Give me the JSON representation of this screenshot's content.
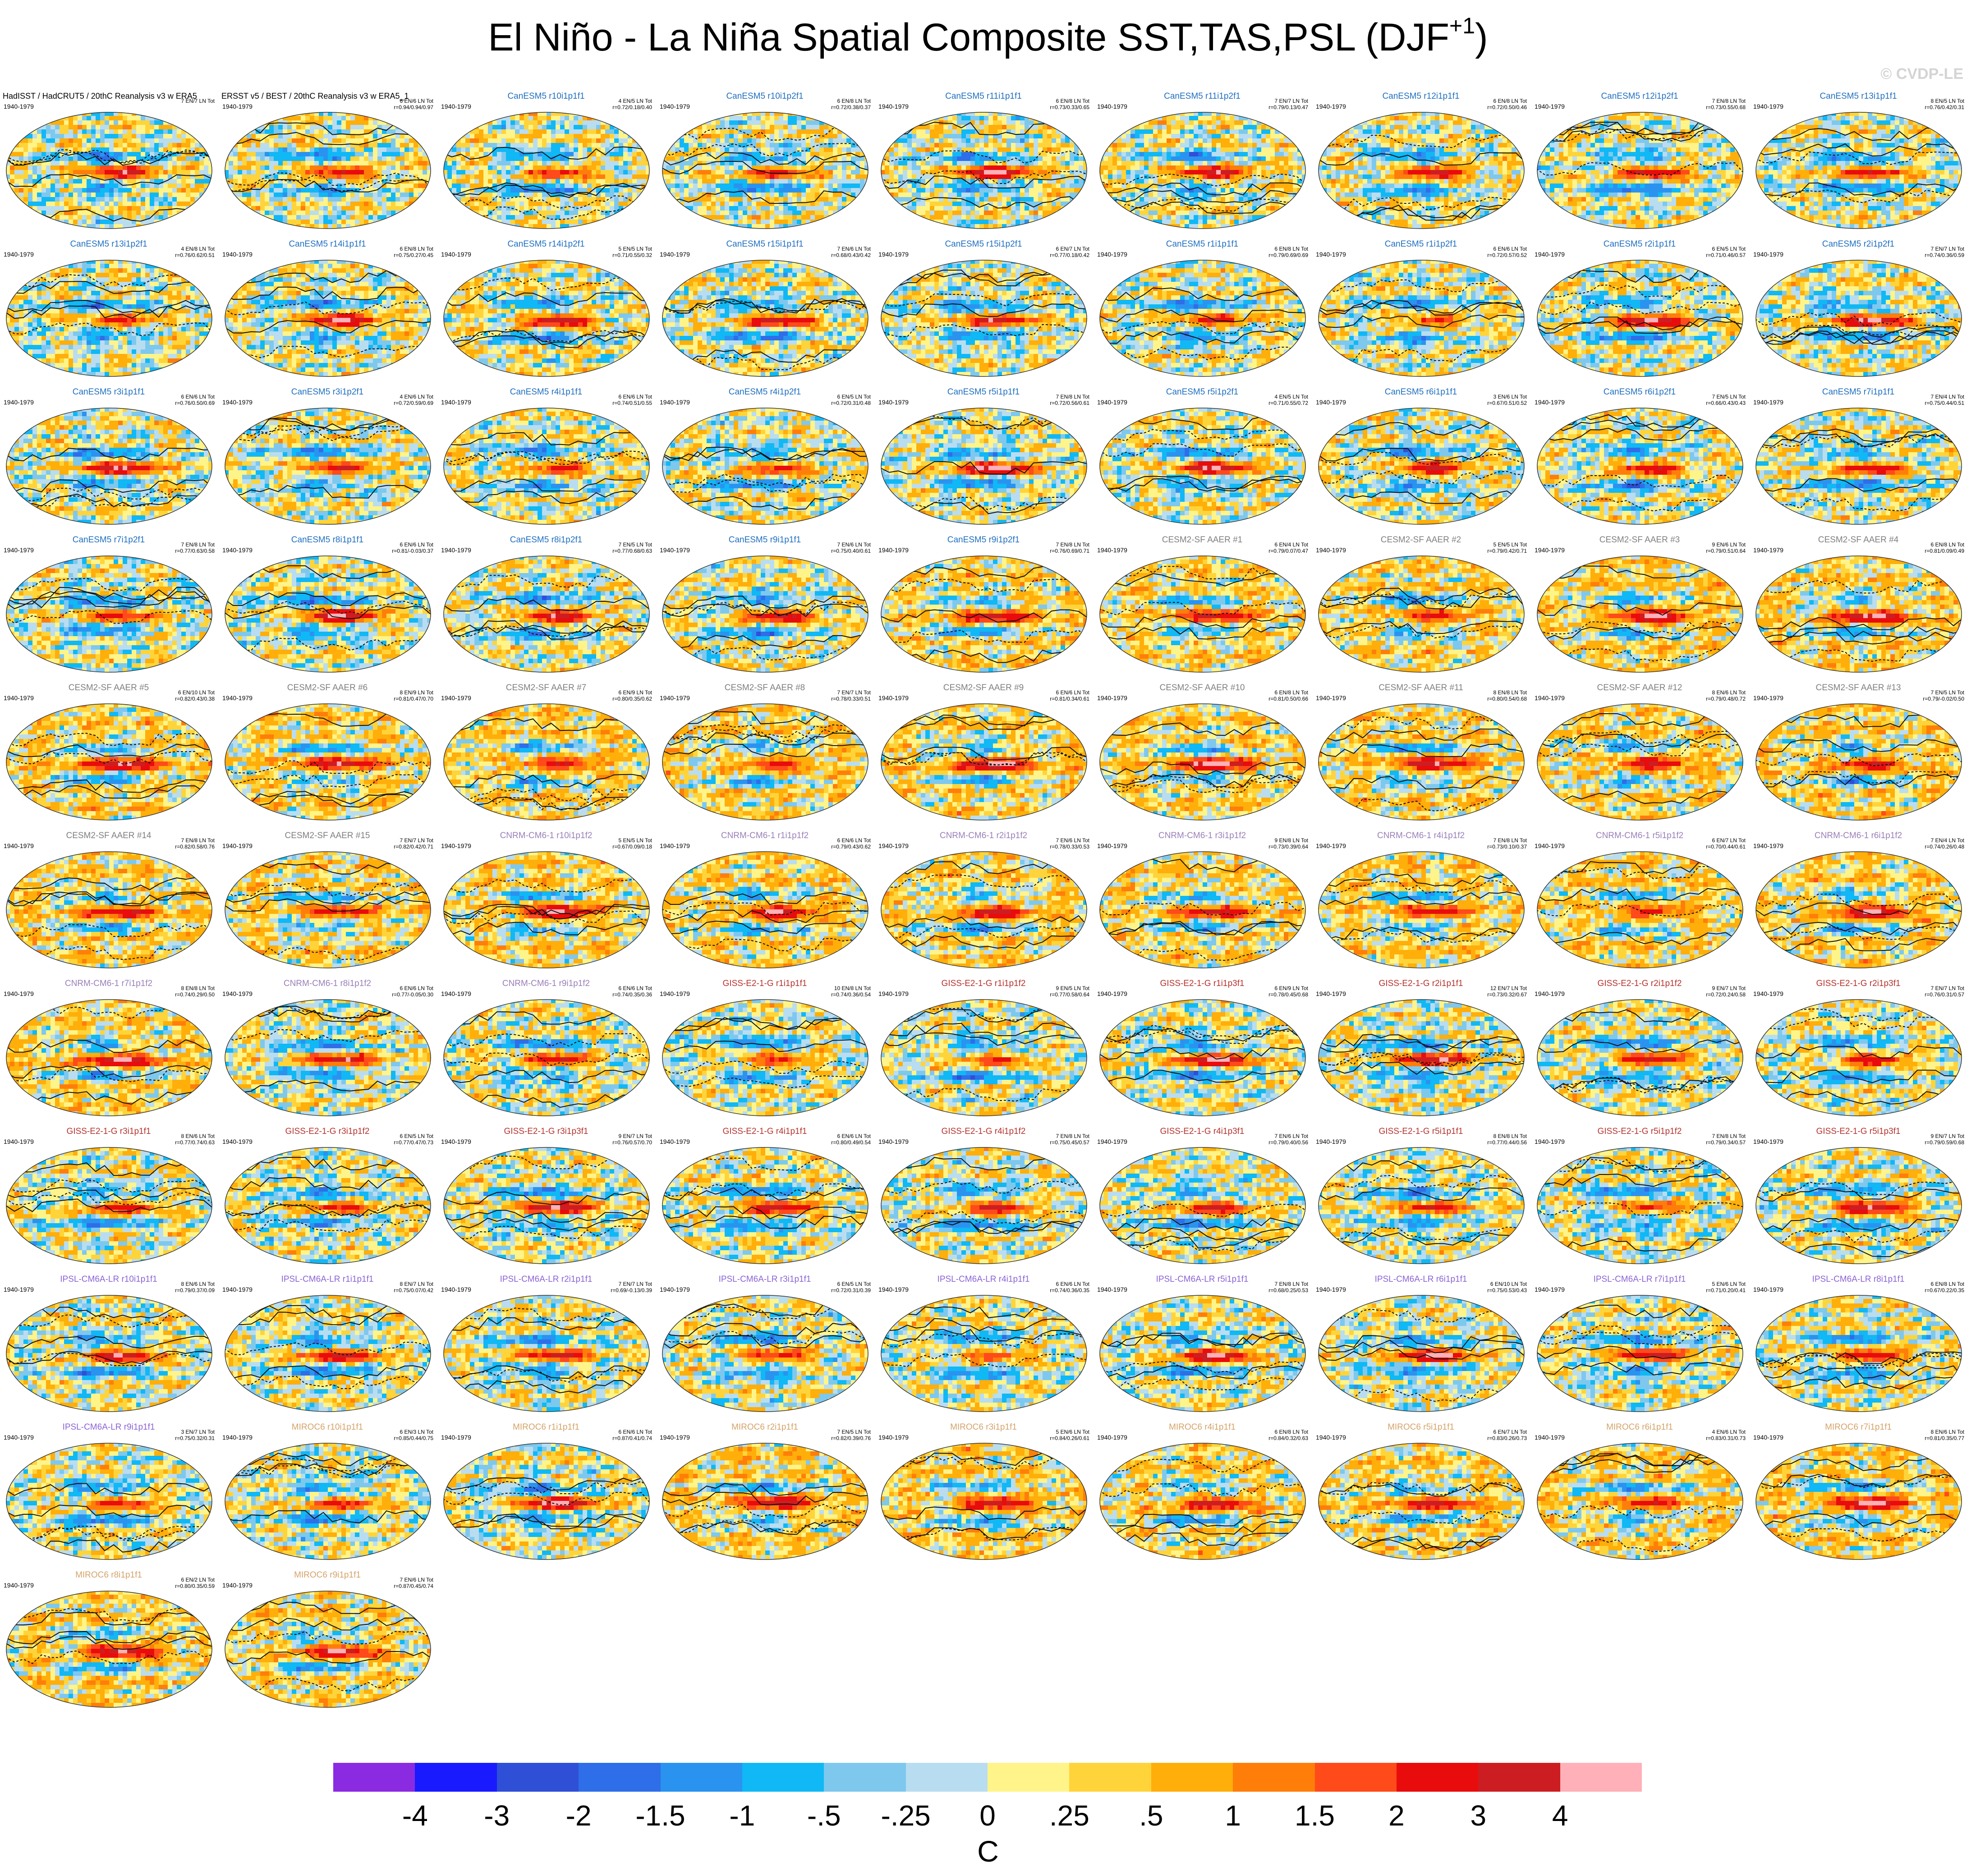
{
  "page": {
    "title_main": "El Niño - La Niña Spatial Composite SST,TAS,PSL (DJF",
    "title_sup": "+1",
    "title_close": ")",
    "watermark": "© CVDP-LE",
    "units": "C"
  },
  "colors": {
    "CanESM5": "#1f6fc0",
    "CESM2": "#7f7f7f",
    "CNRM": "#9a7fb8",
    "GISS": "#b5332e",
    "IPSL": "#8b63d6",
    "MIROC6": "#d4a36a",
    "obs": "#000000"
  },
  "colorbar": {
    "colors": [
      "#8a2be2",
      "#1a1aff",
      "#2f4fd6",
      "#2e6ee8",
      "#2a93f0",
      "#10b8f5",
      "#7ec8ee",
      "#b9ddf0",
      "#fff48a",
      "#ffd43a",
      "#ffae0a",
      "#ff7e0a",
      "#ff4a1a",
      "#e80c0c",
      "#cc1e22",
      "#ffb0b8"
    ],
    "labels": [
      "-4",
      "-3",
      "-2",
      "-1.5",
      "-1",
      "-.5",
      "-.25",
      "0",
      ".25",
      ".5",
      "1",
      "1.5",
      "2",
      "3",
      "4"
    ]
  },
  "chart_data": {
    "type": "heatmap",
    "title": "El Niño - La Niña Spatial Composite SST,TAS,PSL (DJF+1)",
    "colorbar_label": "C",
    "colorbar_levels": [
      -4,
      -3,
      -2,
      -1.5,
      -1,
      -0.5,
      -0.25,
      0,
      0.25,
      0.5,
      1,
      1.5,
      2,
      3,
      4
    ],
    "panels": [
      {
        "name": "HadISST / HadCRUT5 / 20thC Reanalysis v3 w ERA5",
        "period": "1940-1979",
        "stats_1": "7 EN/7 LN Tot",
        "stats_2": "",
        "group": "obs"
      },
      {
        "name": "ERSST v5 / BEST / 20thC Reanalysis v3 w ERA5_1",
        "period": "1940-1979",
        "stats_1": "6 EN/6 LN Tot",
        "stats_2": "r=0.94/0.94/0.97",
        "group": "obs"
      },
      {
        "name": "CanESM5 r10i1p1f1",
        "period": "1940-1979",
        "stats_1": "4 EN/5 LN Tot",
        "stats_2": "r=0.72/0.18/0.40",
        "group": "CanESM5"
      },
      {
        "name": "CanESM5 r10i1p2f1",
        "period": "1940-1979",
        "stats_1": "6 EN/8 LN Tot",
        "stats_2": "r=0.72/0.38/0.37",
        "group": "CanESM5"
      },
      {
        "name": "CanESM5 r11i1p1f1",
        "period": "1940-1979",
        "stats_1": "6 EN/8 LN Tot",
        "stats_2": "r=0.73/0.33/0.65",
        "group": "CanESM5"
      },
      {
        "name": "CanESM5 r11i1p2f1",
        "period": "1940-1979",
        "stats_1": "7 EN/7 LN Tot",
        "stats_2": "r=0.79/0.13/0.47",
        "group": "CanESM5"
      },
      {
        "name": "CanESM5 r12i1p1f1",
        "period": "1940-1979",
        "stats_1": "6 EN/8 LN Tot",
        "stats_2": "r=0.72/0.50/0.46",
        "group": "CanESM5"
      },
      {
        "name": "CanESM5 r12i1p2f1",
        "period": "1940-1979",
        "stats_1": "7 EN/8 LN Tot",
        "stats_2": "r=0.73/0.55/0.68",
        "group": "CanESM5"
      },
      {
        "name": "CanESM5 r13i1p1f1",
        "period": "1940-1979",
        "stats_1": "8 EN/5 LN Tot",
        "stats_2": "r=0.76/0.42/0.31",
        "group": "CanESM5"
      },
      {
        "name": "CanESM5 r13i1p2f1",
        "period": "1940-1979",
        "stats_1": "4 EN/8 LN Tot",
        "stats_2": "r=0.76/0.62/0.51",
        "group": "CanESM5"
      },
      {
        "name": "CanESM5 r14i1p1f1",
        "period": "1940-1979",
        "stats_1": "6 EN/8 LN Tot",
        "stats_2": "r=0.75/0.27/0.45",
        "group": "CanESM5"
      },
      {
        "name": "CanESM5 r14i1p2f1",
        "period": "1940-1979",
        "stats_1": "5 EN/5 LN Tot",
        "stats_2": "r=0.71/0.55/0.32",
        "group": "CanESM5"
      },
      {
        "name": "CanESM5 r15i1p1f1",
        "period": "1940-1979",
        "stats_1": "7 EN/6 LN Tot",
        "stats_2": "r=0.68/0.43/0.42",
        "group": "CanESM5"
      },
      {
        "name": "CanESM5 r15i1p2f1",
        "period": "1940-1979",
        "stats_1": "6 EN/7 LN Tot",
        "stats_2": "r=0.77/0.18/0.42",
        "group": "CanESM5"
      },
      {
        "name": "CanESM5 r1i1p1f1",
        "period": "1940-1979",
        "stats_1": "6 EN/8 LN Tot",
        "stats_2": "r=0.79/0.69/0.69",
        "group": "CanESM5"
      },
      {
        "name": "CanESM5 r1i1p2f1",
        "period": "1940-1979",
        "stats_1": "6 EN/6 LN Tot",
        "stats_2": "r=0.72/0.57/0.52",
        "group": "CanESM5"
      },
      {
        "name": "CanESM5 r2i1p1f1",
        "period": "1940-1979",
        "stats_1": "6 EN/5 LN Tot",
        "stats_2": "r=0.71/0.46/0.57",
        "group": "CanESM5"
      },
      {
        "name": "CanESM5 r2i1p2f1",
        "period": "1940-1979",
        "stats_1": "7 EN/7 LN Tot",
        "stats_2": "r=0.74/0.36/0.59",
        "group": "CanESM5"
      },
      {
        "name": "CanESM5 r3i1p1f1",
        "period": "1940-1979",
        "stats_1": "6 EN/6 LN Tot",
        "stats_2": "r=0.76/0.50/0.69",
        "group": "CanESM5"
      },
      {
        "name": "CanESM5 r3i1p2f1",
        "period": "1940-1979",
        "stats_1": "4 EN/6 LN Tot",
        "stats_2": "r=0.72/0.59/0.69",
        "group": "CanESM5"
      },
      {
        "name": "CanESM5 r4i1p1f1",
        "period": "1940-1979",
        "stats_1": "6 EN/6 LN Tot",
        "stats_2": "r=0.74/0.51/0.55",
        "group": "CanESM5"
      },
      {
        "name": "CanESM5 r4i1p2f1",
        "period": "1940-1979",
        "stats_1": "6 EN/5 LN Tot",
        "stats_2": "r=0.72/0.31/0.48",
        "group": "CanESM5"
      },
      {
        "name": "CanESM5 r5i1p1f1",
        "period": "1940-1979",
        "stats_1": "7 EN/8 LN Tot",
        "stats_2": "r=0.72/0.56/0.61",
        "group": "CanESM5"
      },
      {
        "name": "CanESM5 r5i1p2f1",
        "period": "1940-1979",
        "stats_1": "4 EN/5 LN Tot",
        "stats_2": "r=0.71/0.55/0.72",
        "group": "CanESM5"
      },
      {
        "name": "CanESM5 r6i1p1f1",
        "period": "1940-1979",
        "stats_1": "3 EN/6 LN Tot",
        "stats_2": "r=0.67/0.51/0.52",
        "group": "CanESM5"
      },
      {
        "name": "CanESM5 r6i1p2f1",
        "period": "1940-1979",
        "stats_1": "7 EN/5 LN Tot",
        "stats_2": "r=0.66/0.43/0.43",
        "group": "CanESM5"
      },
      {
        "name": "CanESM5 r7i1p1f1",
        "period": "1940-1979",
        "stats_1": "7 EN/4 LN Tot",
        "stats_2": "r=0.75/0.44/0.51",
        "group": "CanESM5"
      },
      {
        "name": "CanESM5 r7i1p2f1",
        "period": "1940-1979",
        "stats_1": "7 EN/8 LN Tot",
        "stats_2": "r=0.77/0.63/0.58",
        "group": "CanESM5"
      },
      {
        "name": "CanESM5 r8i1p1f1",
        "period": "1940-1979",
        "stats_1": "6 EN/6 LN Tot",
        "stats_2": "r=0.81/-0.03/0.37",
        "group": "CanESM5"
      },
      {
        "name": "CanESM5 r8i1p2f1",
        "period": "1940-1979",
        "stats_1": "7 EN/5 LN Tot",
        "stats_2": "r=0.77/0.68/0.63",
        "group": "CanESM5"
      },
      {
        "name": "CanESM5 r9i1p1f1",
        "period": "1940-1979",
        "stats_1": "7 EN/6 LN Tot",
        "stats_2": "r=0.75/0.40/0.61",
        "group": "CanESM5"
      },
      {
        "name": "CanESM5 r9i1p2f1",
        "period": "1940-1979",
        "stats_1": "7 EN/8 LN Tot",
        "stats_2": "r=0.76/0.69/0.71",
        "group": "CanESM5"
      },
      {
        "name": "CESM2-SF AAER #1",
        "period": "1940-1979",
        "stats_1": "6 EN/4 LN Tot",
        "stats_2": "r=0.79/0.07/0.47",
        "group": "CESM2"
      },
      {
        "name": "CESM2-SF AAER #2",
        "period": "1940-1979",
        "stats_1": "5 EN/5 LN Tot",
        "stats_2": "r=0.79/0.42/0.71",
        "group": "CESM2"
      },
      {
        "name": "CESM2-SF AAER #3",
        "period": "1940-1979",
        "stats_1": "9 EN/6 LN Tot",
        "stats_2": "r=0.79/0.51/0.64",
        "group": "CESM2"
      },
      {
        "name": "CESM2-SF AAER #4",
        "period": "1940-1979",
        "stats_1": "6 EN/8 LN Tot",
        "stats_2": "r=0.81/0.09/0.49",
        "group": "CESM2"
      },
      {
        "name": "CESM2-SF AAER #5",
        "period": "1940-1979",
        "stats_1": "6 EN/10 LN Tot",
        "stats_2": "r=0.82/0.43/0.38",
        "group": "CESM2"
      },
      {
        "name": "CESM2-SF AAER #6",
        "period": "1940-1979",
        "stats_1": "8 EN/9 LN Tot",
        "stats_2": "r=0.81/0.47/0.70",
        "group": "CESM2"
      },
      {
        "name": "CESM2-SF AAER #7",
        "period": "1940-1979",
        "stats_1": "6 EN/9 LN Tot",
        "stats_2": "r=0.80/0.35/0.62",
        "group": "CESM2"
      },
      {
        "name": "CESM2-SF AAER #8",
        "period": "1940-1979",
        "stats_1": "7 EN/7 LN Tot",
        "stats_2": "r=0.78/0.33/0.51",
        "group": "CESM2"
      },
      {
        "name": "CESM2-SF AAER #9",
        "period": "1940-1979",
        "stats_1": "6 EN/6 LN Tot",
        "stats_2": "r=0.81/0.34/0.61",
        "group": "CESM2"
      },
      {
        "name": "CESM2-SF AAER #10",
        "period": "1940-1979",
        "stats_1": "6 EN/8 LN Tot",
        "stats_2": "r=0.81/0.50/0.66",
        "group": "CESM2"
      },
      {
        "name": "CESM2-SF AAER #11",
        "period": "1940-1979",
        "stats_1": "8 EN/8 LN Tot",
        "stats_2": "r=0.80/0.54/0.68",
        "group": "CESM2"
      },
      {
        "name": "CESM2-SF AAER #12",
        "period": "1940-1979",
        "stats_1": "8 EN/6 LN Tot",
        "stats_2": "r=0.79/0.48/0.72",
        "group": "CESM2"
      },
      {
        "name": "CESM2-SF AAER #13",
        "period": "1940-1979",
        "stats_1": "7 EN/5 LN Tot",
        "stats_2": "r=0.79/-0.02/0.50",
        "group": "CESM2"
      },
      {
        "name": "CESM2-SF AAER #14",
        "period": "1940-1979",
        "stats_1": "7 EN/8 LN Tot",
        "stats_2": "r=0.82/0.58/0.76",
        "group": "CESM2"
      },
      {
        "name": "CESM2-SF AAER #15",
        "period": "1940-1979",
        "stats_1": "7 EN/7 LN Tot",
        "stats_2": "r=0.82/0.42/0.71",
        "group": "CESM2"
      },
      {
        "name": "CNRM-CM6-1 r10i1p1f2",
        "period": "1940-1979",
        "stats_1": "5 EN/5 LN Tot",
        "stats_2": "r=0.67/0.09/0.18",
        "group": "CNRM"
      },
      {
        "name": "CNRM-CM6-1 r1i1p1f2",
        "period": "1940-1979",
        "stats_1": "6 EN/6 LN Tot",
        "stats_2": "r=0.79/0.43/0.62",
        "group": "CNRM"
      },
      {
        "name": "CNRM-CM6-1 r2i1p1f2",
        "period": "1940-1979",
        "stats_1": "7 EN/6 LN Tot",
        "stats_2": "r=0.78/0.33/0.53",
        "group": "CNRM"
      },
      {
        "name": "CNRM-CM6-1 r3i1p1f2",
        "period": "1940-1979",
        "stats_1": "9 EN/8 LN Tot",
        "stats_2": "r=0.73/0.39/0.64",
        "group": "CNRM"
      },
      {
        "name": "CNRM-CM6-1 r4i1p1f2",
        "period": "1940-1979",
        "stats_1": "7 EN/8 LN Tot",
        "stats_2": "r=0.73/0.10/0.37",
        "group": "CNRM"
      },
      {
        "name": "CNRM-CM6-1 r5i1p1f2",
        "period": "1940-1979",
        "stats_1": "6 EN/7 LN Tot",
        "stats_2": "r=0.70/0.44/0.61",
        "group": "CNRM"
      },
      {
        "name": "CNRM-CM6-1 r6i1p1f2",
        "period": "1940-1979",
        "stats_1": "7 EN/4 LN Tot",
        "stats_2": "r=0.74/0.26/0.48",
        "group": "CNRM"
      },
      {
        "name": "CNRM-CM6-1 r7i1p1f2",
        "period": "1940-1979",
        "stats_1": "8 EN/8 LN Tot",
        "stats_2": "r=0.74/0.29/0.50",
        "group": "CNRM"
      },
      {
        "name": "CNRM-CM6-1 r8i1p1f2",
        "period": "1940-1979",
        "stats_1": "6 EN/6 LN Tot",
        "stats_2": "r=0.77/-0.05/0.30",
        "group": "CNRM"
      },
      {
        "name": "CNRM-CM6-1 r9i1p1f2",
        "period": "1940-1979",
        "stats_1": "6 EN/6 LN Tot",
        "stats_2": "r=0.74/0.35/0.36",
        "group": "CNRM"
      },
      {
        "name": "GISS-E2-1-G r1i1p1f1",
        "period": "1940-1979",
        "stats_1": "10 EN/8 LN Tot",
        "stats_2": "r=0.74/0.36/0.54",
        "group": "GISS"
      },
      {
        "name": "GISS-E2-1-G r1i1p1f2",
        "period": "1940-1979",
        "stats_1": "9 EN/5 LN Tot",
        "stats_2": "r=0.77/0.58/0.64",
        "group": "GISS"
      },
      {
        "name": "GISS-E2-1-G r1i1p3f1",
        "period": "1940-1979",
        "stats_1": "6 EN/9 LN Tot",
        "stats_2": "r=0.78/0.45/0.68",
        "group": "GISS"
      },
      {
        "name": "GISS-E2-1-G r2i1p1f1",
        "period": "1940-1979",
        "stats_1": "12 EN/7 LN Tot",
        "stats_2": "r=0.73/0.32/0.67",
        "group": "GISS"
      },
      {
        "name": "GISS-E2-1-G r2i1p1f2",
        "period": "1940-1979",
        "stats_1": "9 EN/7 LN Tot",
        "stats_2": "r=0.72/0.24/0.58",
        "group": "GISS"
      },
      {
        "name": "GISS-E2-1-G r2i1p3f1",
        "period": "1940-1979",
        "stats_1": "7 EN/7 LN Tot",
        "stats_2": "r=0.76/0.31/0.57",
        "group": "GISS"
      },
      {
        "name": "GISS-E2-1-G r3i1p1f1",
        "period": "1940-1979",
        "stats_1": "8 EN/6 LN Tot",
        "stats_2": "r=0.77/0.74/0.63",
        "group": "GISS"
      },
      {
        "name": "GISS-E2-1-G r3i1p1f2",
        "period": "1940-1979",
        "stats_1": "6 EN/5 LN Tot",
        "stats_2": "r=0.77/0.47/0.73",
        "group": "GISS"
      },
      {
        "name": "GISS-E2-1-G r3i1p3f1",
        "period": "1940-1979",
        "stats_1": "9 EN/7 LN Tot",
        "stats_2": "r=0.76/0.57/0.70",
        "group": "GISS"
      },
      {
        "name": "GISS-E2-1-G r4i1p1f1",
        "period": "1940-1979",
        "stats_1": "6 EN/6 LN Tot",
        "stats_2": "r=0.80/0.49/0.54",
        "group": "GISS"
      },
      {
        "name": "GISS-E2-1-G r4i1p1f2",
        "period": "1940-1979",
        "stats_1": "7 EN/8 LN Tot",
        "stats_2": "r=0.75/0.45/0.57",
        "group": "GISS"
      },
      {
        "name": "GISS-E2-1-G r4i1p3f1",
        "period": "1940-1979",
        "stats_1": "7 EN/6 LN Tot",
        "stats_2": "r=0.79/0.40/0.56",
        "group": "GISS"
      },
      {
        "name": "GISS-E2-1-G r5i1p1f1",
        "period": "1940-1979",
        "stats_1": "8 EN/8 LN Tot",
        "stats_2": "r=0.77/0.44/0.56",
        "group": "GISS"
      },
      {
        "name": "GISS-E2-1-G r5i1p1f2",
        "period": "1940-1979",
        "stats_1": "7 EN/8 LN Tot",
        "stats_2": "r=0.79/0.34/0.57",
        "group": "GISS"
      },
      {
        "name": "GISS-E2-1-G r5i1p3f1",
        "period": "1940-1979",
        "stats_1": "9 EN/7 LN Tot",
        "stats_2": "r=0.79/0.59/0.68",
        "group": "GISS"
      },
      {
        "name": "IPSL-CM6A-LR r10i1p1f1",
        "period": "1940-1979",
        "stats_1": "8 EN/6 LN Tot",
        "stats_2": "r=0.79/0.37/0.09",
        "group": "IPSL"
      },
      {
        "name": "IPSL-CM6A-LR r1i1p1f1",
        "period": "1940-1979",
        "stats_1": "8 EN/7 LN Tot",
        "stats_2": "r=0.75/0.07/0.42",
        "group": "IPSL"
      },
      {
        "name": "IPSL-CM6A-LR r2i1p1f1",
        "period": "1940-1979",
        "stats_1": "7 EN/7 LN Tot",
        "stats_2": "r=0.69/-0.13/0.39",
        "group": "IPSL"
      },
      {
        "name": "IPSL-CM6A-LR r3i1p1f1",
        "period": "1940-1979",
        "stats_1": "6 EN/5 LN Tot",
        "stats_2": "r=0.72/0.31/0.39",
        "group": "IPSL"
      },
      {
        "name": "IPSL-CM6A-LR r4i1p1f1",
        "period": "1940-1979",
        "stats_1": "6 EN/6 LN Tot",
        "stats_2": "r=0.74/0.36/0.35",
        "group": "IPSL"
      },
      {
        "name": "IPSL-CM6A-LR r5i1p1f1",
        "period": "1940-1979",
        "stats_1": "7 EN/8 LN Tot",
        "stats_2": "r=0.68/0.25/0.53",
        "group": "IPSL"
      },
      {
        "name": "IPSL-CM6A-LR r6i1p1f1",
        "period": "1940-1979",
        "stats_1": "6 EN/10 LN Tot",
        "stats_2": "r=0.75/0.53/0.43",
        "group": "IPSL"
      },
      {
        "name": "IPSL-CM6A-LR r7i1p1f1",
        "period": "1940-1979",
        "stats_1": "5 EN/6 LN Tot",
        "stats_2": "r=0.71/0.20/0.41",
        "group": "IPSL"
      },
      {
        "name": "IPSL-CM6A-LR r8i1p1f1",
        "period": "1940-1979",
        "stats_1": "6 EN/8 LN Tot",
        "stats_2": "r=0.67/0.22/0.35",
        "group": "IPSL"
      },
      {
        "name": "IPSL-CM6A-LR r9i1p1f1",
        "period": "1940-1979",
        "stats_1": "3 EN/7 LN Tot",
        "stats_2": "r=0.75/0.32/0.31",
        "group": "IPSL"
      },
      {
        "name": "MIROC6 r10i1p1f1",
        "period": "1940-1979",
        "stats_1": "6 EN/3 LN Tot",
        "stats_2": "r=0.85/0.44/0.75",
        "group": "MIROC6"
      },
      {
        "name": "MIROC6 r1i1p1f1",
        "period": "1940-1979",
        "stats_1": "6 EN/6 LN Tot",
        "stats_2": "r=0.87/0.41/0.74",
        "group": "MIROC6"
      },
      {
        "name": "MIROC6 r2i1p1f1",
        "period": "1940-1979",
        "stats_1": "7 EN/5 LN Tot",
        "stats_2": "r=0.82/0.39/0.76",
        "group": "MIROC6"
      },
      {
        "name": "MIROC6 r3i1p1f1",
        "period": "1940-1979",
        "stats_1": "5 EN/6 LN Tot",
        "stats_2": "r=0.84/0.26/0.61",
        "group": "MIROC6"
      },
      {
        "name": "MIROC6 r4i1p1f1",
        "period": "1940-1979",
        "stats_1": "6 EN/8 LN Tot",
        "stats_2": "r=0.84/0.32/0.63",
        "group": "MIROC6"
      },
      {
        "name": "MIROC6 r5i1p1f1",
        "period": "1940-1979",
        "stats_1": "6 EN/7 LN Tot",
        "stats_2": "r=0.83/0.26/0.73",
        "group": "MIROC6"
      },
      {
        "name": "MIROC6 r6i1p1f1",
        "period": "1940-1979",
        "stats_1": "4 EN/6 LN Tot",
        "stats_2": "r=0.83/0.31/0.73",
        "group": "MIROC6"
      },
      {
        "name": "MIROC6 r7i1p1f1",
        "period": "1940-1979",
        "stats_1": "8 EN/6 LN Tot",
        "stats_2": "r=0.81/0.35/0.77",
        "group": "MIROC6"
      },
      {
        "name": "MIROC6 r8i1p1f1",
        "period": "1940-1979",
        "stats_1": "6 EN/2 LN Tot",
        "stats_2": "r=0.80/0.35/0.59",
        "group": "MIROC6"
      },
      {
        "name": "MIROC6 r9i1p1f1",
        "period": "1940-1979",
        "stats_1": "7 EN/6 LN Tot",
        "stats_2": "r=0.87/0.45/0.74",
        "group": "MIROC6"
      }
    ]
  }
}
